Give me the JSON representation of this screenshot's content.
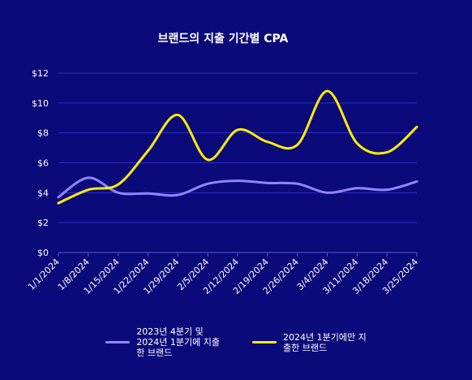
{
  "chart_data": {
    "type": "line",
    "title": "브랜드의 지출 기간별 CPA",
    "xlabel": "",
    "ylabel": "",
    "categories": [
      "1/1/2024",
      "1/8/2024",
      "1/15/2024",
      "1/22/2024",
      "1/29/2024",
      "2/5/2024",
      "2/12/2024",
      "2/19/2024",
      "2/26/2024",
      "3/4/2024",
      "3/11/2024",
      "3/18/2024",
      "3/25/2024"
    ],
    "y_ticks": [
      "$0",
      "$2",
      "$4",
      "$6",
      "$8",
      "$10",
      "$12"
    ],
    "ylim": [
      0,
      12
    ],
    "grid": true,
    "legend_position": "bottom",
    "series": [
      {
        "name": "2023년 4분기 및\n2024년 1분기에 지출\n한 브랜드",
        "color": "#8f86ff",
        "values": [
          3.7,
          5.0,
          4.0,
          3.95,
          3.85,
          4.6,
          4.8,
          4.65,
          4.6,
          4.0,
          4.3,
          4.2,
          4.75
        ]
      },
      {
        "name": "2024년 1분기에만 지\n출한 브랜드",
        "color": "#ffee00",
        "values": [
          3.3,
          4.2,
          4.55,
          6.8,
          9.2,
          6.2,
          8.2,
          7.4,
          7.2,
          10.8,
          7.3,
          6.7,
          8.4
        ]
      }
    ]
  }
}
